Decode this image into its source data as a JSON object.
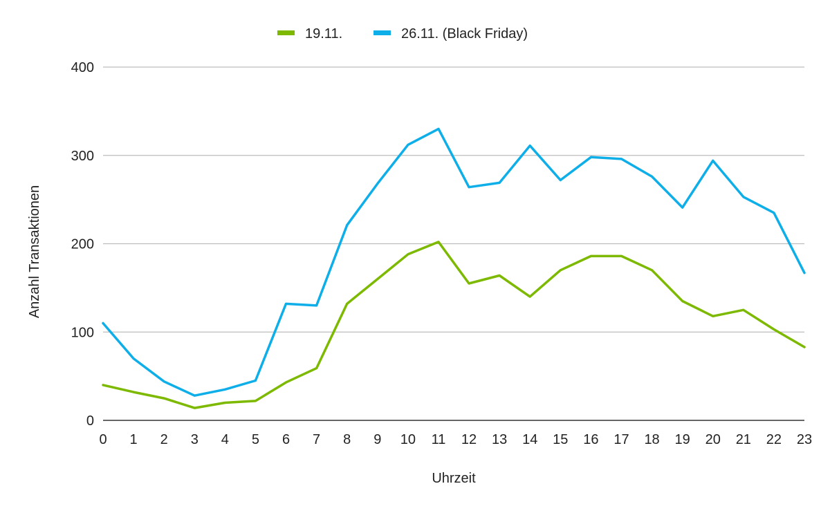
{
  "chart_data": {
    "type": "line",
    "title": "",
    "xlabel": "Uhrzeit",
    "ylabel": "Anzahl Transaktionen",
    "categories": [
      "0",
      "1",
      "2",
      "3",
      "4",
      "5",
      "6",
      "7",
      "8",
      "9",
      "10",
      "11",
      "12",
      "13",
      "14",
      "15",
      "16",
      "17",
      "18",
      "19",
      "20",
      "21",
      "22",
      "23"
    ],
    "yticks": [
      "0",
      "100",
      "200",
      "300",
      "400"
    ],
    "ylim": [
      0,
      400
    ],
    "grid": true,
    "legend_position": "top-center",
    "series": [
      {
        "name": "19.11.",
        "color": "#7cb900",
        "values": [
          40,
          32,
          25,
          14,
          20,
          22,
          43,
          59,
          132,
          160,
          188,
          202,
          155,
          164,
          140,
          170,
          186,
          186,
          170,
          135,
          118,
          125,
          103,
          83
        ]
      },
      {
        "name": "26.11. (Black Friday)",
        "color": "#0eaee8",
        "values": [
          110,
          70,
          44,
          28,
          35,
          45,
          132,
          130,
          221,
          268,
          312,
          330,
          264,
          269,
          311,
          272,
          298,
          296,
          276,
          241,
          294,
          253,
          235,
          167
        ]
      }
    ]
  }
}
